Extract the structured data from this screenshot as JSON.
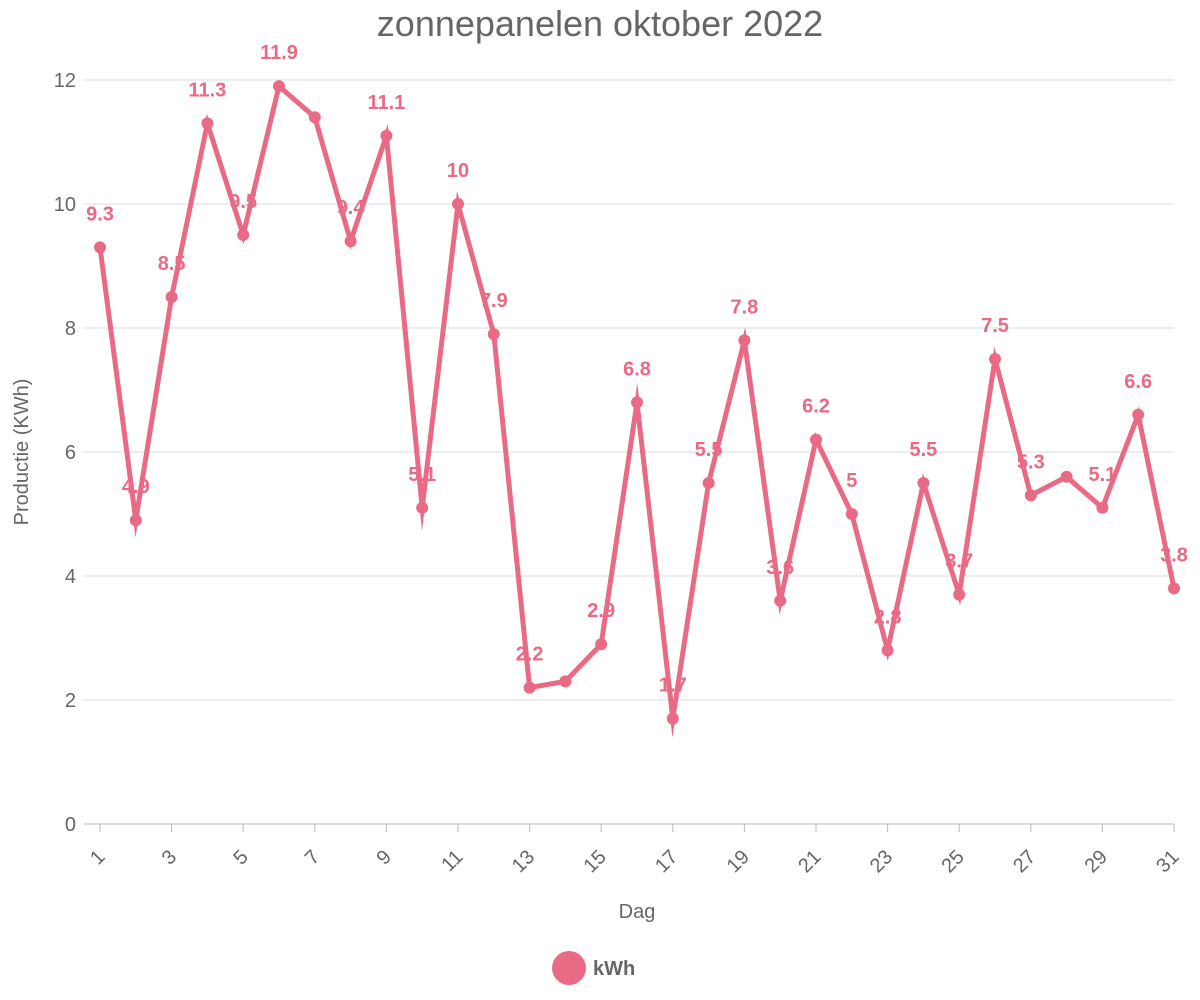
{
  "chart_data": {
    "type": "line",
    "title": "zonnepanelen oktober 2022",
    "xlabel": "Dag",
    "ylabel": "Productie (KWh)",
    "ylim": [
      0,
      12
    ],
    "yticks": [
      0,
      2,
      4,
      6,
      8,
      10,
      12
    ],
    "x": [
      1,
      2,
      3,
      4,
      5,
      6,
      7,
      8,
      9,
      10,
      11,
      12,
      13,
      14,
      15,
      16,
      17,
      18,
      19,
      20,
      21,
      22,
      23,
      24,
      25,
      26,
      27,
      28,
      29,
      30,
      31
    ],
    "xticks": [
      "1",
      "3",
      "5",
      "7",
      "9",
      "11",
      "13",
      "15",
      "17",
      "19",
      "21",
      "23",
      "25",
      "27",
      "29",
      "31"
    ],
    "series": [
      {
        "name": "kWh",
        "color": "#e96a85",
        "values": [
          9.3,
          4.9,
          8.5,
          11.3,
          9.5,
          11.9,
          11.4,
          9.4,
          11.1,
          5.1,
          10,
          7.9,
          2.2,
          2.3,
          2.9,
          6.8,
          1.7,
          5.5,
          7.8,
          3.6,
          6.2,
          5,
          2.8,
          5.5,
          3.7,
          7.5,
          5.3,
          5.6,
          5.1,
          6.6,
          3.8
        ],
        "labels": [
          "9.3",
          "4.9",
          "8.5",
          "11.3",
          "9.5",
          "11.9",
          "",
          "9.4",
          "11.1",
          "5.1",
          "10",
          "7.9",
          "2.2",
          "",
          "2.9",
          "6.8",
          "1.7",
          "5.5",
          "7.8",
          "3.6",
          "6.2",
          "5",
          "2.8",
          "5.5",
          "3.7",
          "7.5",
          "5.3",
          "",
          "5.1",
          "6.6",
          "3.8"
        ]
      }
    ],
    "grid": true,
    "legend": "bottom"
  }
}
